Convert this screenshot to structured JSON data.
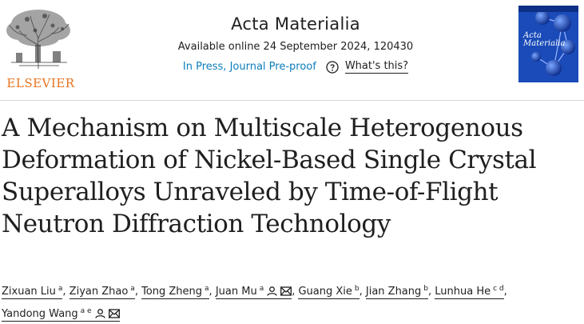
{
  "publisher": {
    "name": "ELSEVIER",
    "color": "#e9711c"
  },
  "journal": {
    "title": "Acta Materialia",
    "availability": "Available online 24 September 2024, 120430",
    "status_link": "In Press, Journal Pre-proof",
    "help_label": "What's this?",
    "cover_title": "Acta Materialia"
  },
  "article": {
    "title": "A Mechanism on Multiscale Heterogenous Deformation of Nickel-Based Single Crystal Superalloys Unraveled by Time-of-Flight Neutron Diffraction Technology"
  },
  "authors": [
    {
      "name": "Zixuan Liu",
      "aff": "a",
      "icons": []
    },
    {
      "name": "Ziyan Zhao",
      "aff": "a",
      "icons": []
    },
    {
      "name": "Tong Zheng",
      "aff": "a",
      "icons": []
    },
    {
      "name": "Juan Mu",
      "aff": "a",
      "icons": [
        "person-icon",
        "mail-icon"
      ]
    },
    {
      "name": "Guang Xie",
      "aff": "b",
      "icons": []
    },
    {
      "name": "Jian Zhang",
      "aff": "b",
      "icons": []
    },
    {
      "name": "Lunhua He",
      "aff": "c d",
      "icons": []
    },
    {
      "name": "Yandong Wang",
      "aff": "a e",
      "icons": [
        "person-icon",
        "mail-icon"
      ]
    }
  ],
  "colors": {
    "link": "#0c7dbb",
    "cover": "#1a4bb8",
    "text": "#1f1f1f"
  }
}
